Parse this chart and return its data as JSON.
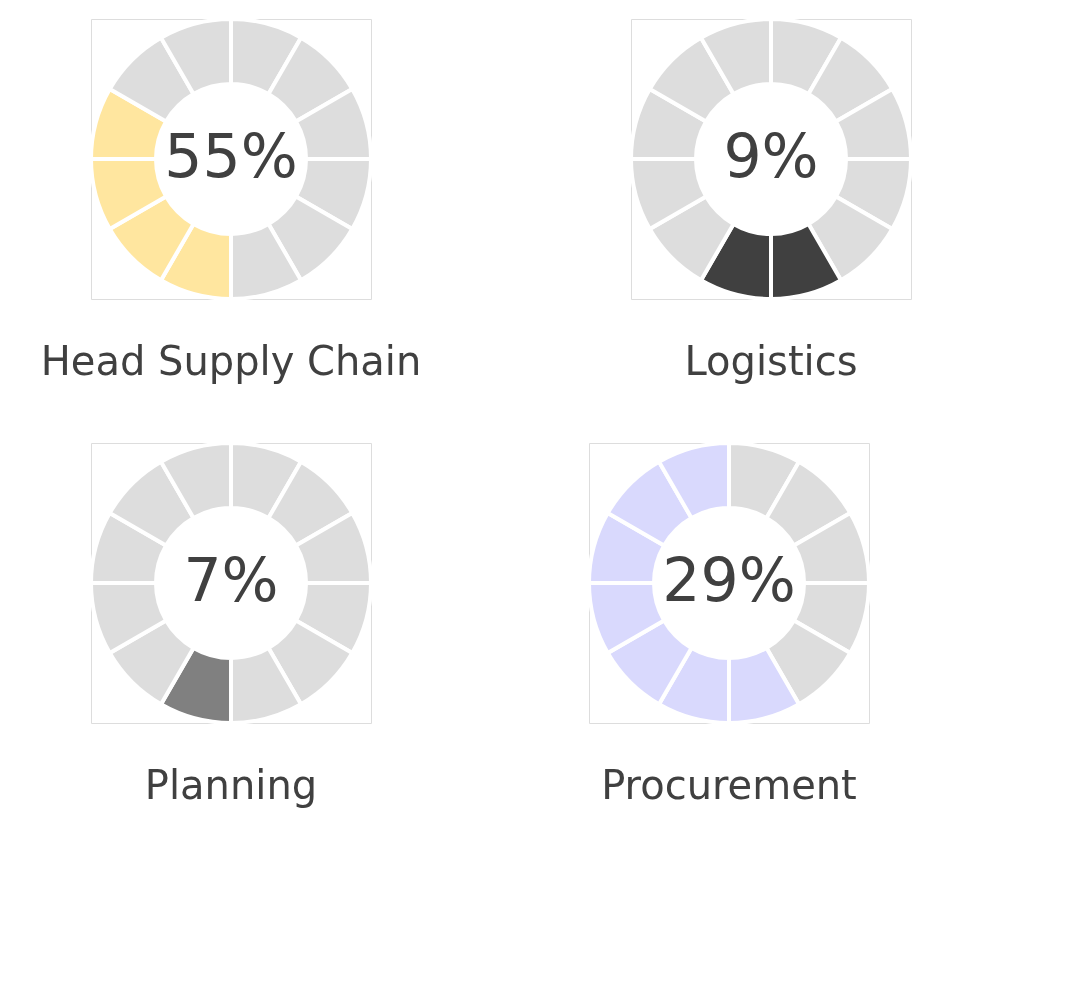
{
  "chart_data": [
    {
      "type": "donut",
      "title": "Head Supply Chain",
      "annotations": [
        "55%"
      ],
      "categories": [
        null,
        null,
        null,
        null,
        null,
        null,
        null,
        null,
        null,
        null,
        null,
        null
      ],
      "values": [
        8.33,
        8.33,
        8.33,
        8.33,
        8.33,
        8.33,
        8.33,
        8.33,
        8.33,
        8.33,
        8.33,
        8.33
      ],
      "colors": [
        "#dddddd",
        "#dddddd",
        "#dddddd",
        "#dddddd",
        "#dddddd",
        "#dddddd",
        "#ffe69f",
        "#ffe69f",
        "#ffe69f",
        "#ffe69f",
        "#dddddd",
        "#dddddd"
      ]
    },
    {
      "type": "donut",
      "title": "Logistics",
      "annotations": [
        "9%"
      ],
      "categories": [
        null,
        null,
        null,
        null,
        null,
        null,
        null,
        null,
        null,
        null,
        null,
        null
      ],
      "values": [
        8.33,
        8.33,
        8.33,
        8.33,
        8.33,
        8.33,
        8.33,
        8.33,
        8.33,
        8.33,
        8.33,
        8.33
      ],
      "colors": [
        "#dddddd",
        "#dddddd",
        "#dddddd",
        "#dddddd",
        "#dddddd",
        "#404040",
        "#404040",
        "#dddddd",
        "#dddddd",
        "#dddddd",
        "#dddddd",
        "#dddddd"
      ]
    },
    {
      "type": "donut",
      "title": "Planning",
      "annotations": [
        "7%"
      ],
      "categories": [
        null,
        null,
        null,
        null,
        null,
        null,
        null,
        null,
        null,
        null,
        null,
        null
      ],
      "values": [
        8.33,
        8.33,
        8.33,
        8.33,
        8.33,
        8.33,
        8.33,
        8.33,
        8.33,
        8.33,
        8.33,
        8.33
      ],
      "colors": [
        "#dddddd",
        "#dddddd",
        "#dddddd",
        "#dddddd",
        "#dddddd",
        "#dddddd",
        "#808080",
        "#dddddd",
        "#dddddd",
        "#dddddd",
        "#dddddd",
        "#dddddd"
      ]
    },
    {
      "type": "donut",
      "title": "Procurement",
      "annotations": [
        "29%"
      ],
      "categories": [
        null,
        null,
        null,
        null,
        null,
        null,
        null,
        null,
        null,
        null,
        null,
        null
      ],
      "values": [
        8.33,
        8.33,
        8.33,
        8.33,
        8.33,
        8.33,
        8.33,
        8.33,
        8.33,
        8.33,
        8.33,
        8.33
      ],
      "colors": [
        "#dddddd",
        "#dddddd",
        "#dddddd",
        "#dddddd",
        "#dddddd",
        "#d9d9fd",
        "#d9d9fd",
        "#d9d9fd",
        "#d9d9fd",
        "#d9d9fd",
        "#d9d9fd",
        "#d9d9fd"
      ]
    }
  ]
}
